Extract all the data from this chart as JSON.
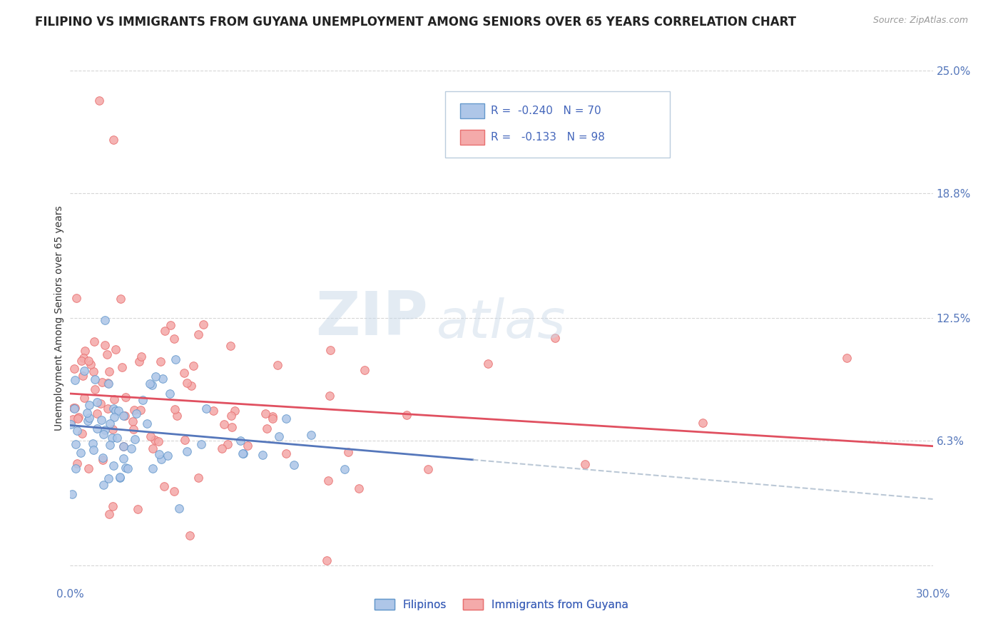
{
  "title": "FILIPINO VS IMMIGRANTS FROM GUYANA UNEMPLOYMENT AMONG SENIORS OVER 65 YEARS CORRELATION CHART",
  "source": "Source: ZipAtlas.com",
  "ylabel": "Unemployment Among Seniors over 65 years",
  "xlim": [
    0.0,
    0.3
  ],
  "ylim": [
    -0.01,
    0.26
  ],
  "ytick_right_labels": [
    "6.3%",
    "12.5%",
    "18.8%",
    "25.0%"
  ],
  "ytick_right_values": [
    0.063,
    0.125,
    0.188,
    0.25
  ],
  "grid_color": "#cccccc",
  "background_color": "#ffffff",
  "filipino_color": "#aec6e8",
  "guyana_color": "#f4aaaa",
  "filipino_edge_color": "#6699cc",
  "guyana_edge_color": "#e87070",
  "filipino_line_color": "#5577bb",
  "guyana_line_color": "#e05060",
  "legend_R1": "-0.240",
  "legend_N1": "70",
  "legend_R2": "-0.133",
  "legend_N2": "98",
  "legend_label1": "Filipinos",
  "legend_label2": "Immigrants from Guyana",
  "watermark_zip": "ZIP",
  "watermark_atlas": "atlas",
  "title_fontsize": 12,
  "axis_label_fontsize": 10,
  "tick_fontsize": 11
}
